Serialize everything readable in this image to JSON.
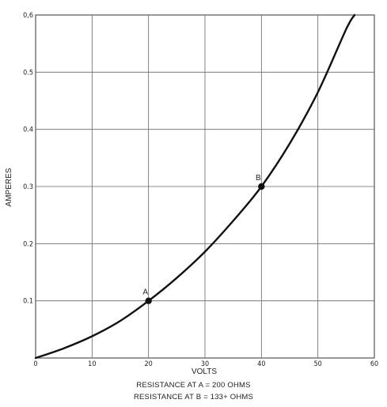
{
  "chart_data": {
    "type": "line",
    "title": "",
    "xlabel": "VOLTS",
    "ylabel": "AMPERES",
    "xlim": [
      0,
      60
    ],
    "ylim": [
      0,
      0.6
    ],
    "x_ticks": [
      0,
      10,
      20,
      30,
      40,
      50,
      60
    ],
    "x_tick_labels": [
      "0",
      "10",
      "20",
      "30",
      "40",
      "50",
      "60"
    ],
    "y_ticks": [
      0.1,
      0.2,
      0.3,
      0.4,
      0.5,
      0.6
    ],
    "y_tick_labels": [
      "0.1",
      "0.2",
      "0.3",
      "0.4",
      "0.5",
      "0,6"
    ],
    "grid": true,
    "series": [
      {
        "x": [
          0,
          5,
          10,
          15,
          20,
          25,
          30,
          35,
          40,
          45,
          50,
          55,
          56.5
        ],
        "y": [
          0,
          0.017,
          0.038,
          0.065,
          0.1,
          0.14,
          0.186,
          0.24,
          0.3,
          0.375,
          0.465,
          0.575,
          0.6
        ]
      }
    ],
    "points": [
      {
        "label": "A",
        "x": 20,
        "y": 0.1
      },
      {
        "label": "B",
        "x": 40,
        "y": 0.3
      }
    ],
    "annotations": [
      "RESISTANCE AT A = 200 OHMS",
      "RESISTANCE AT B = 133+ OHMS"
    ]
  }
}
